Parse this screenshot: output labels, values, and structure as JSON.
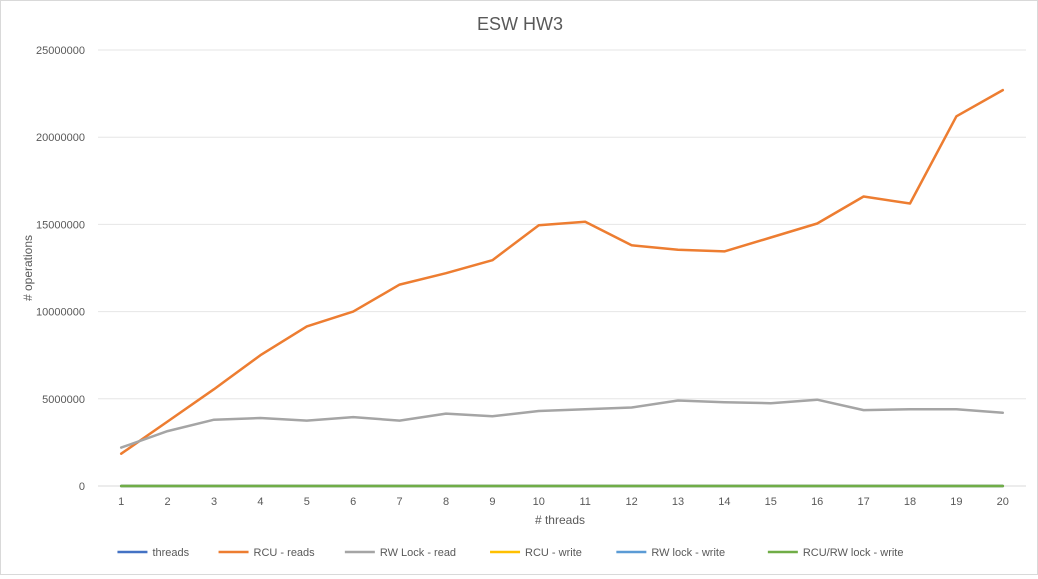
{
  "chart_data": {
    "type": "line",
    "title": "ESW HW3",
    "xlabel": "# threads",
    "ylabel": "# operations",
    "categories": [
      "1",
      "2",
      "3",
      "4",
      "5",
      "6",
      "7",
      "8",
      "9",
      "10",
      "11",
      "12",
      "13",
      "14",
      "15",
      "16",
      "17",
      "18",
      "19",
      "20"
    ],
    "ylim": [
      0,
      25000000
    ],
    "yticks": [
      "0",
      "5000000",
      "10000000",
      "15000000",
      "20000000",
      "25000000"
    ],
    "grid": true,
    "legend_position": "bottom",
    "series": [
      {
        "name": "threads",
        "color": "#4472c4",
        "values": [
          1,
          2,
          3,
          4,
          5,
          6,
          7,
          8,
          9,
          10,
          11,
          12,
          13,
          14,
          15,
          16,
          17,
          18,
          19,
          20
        ]
      },
      {
        "name": "RCU - reads",
        "color": "#ed7d31",
        "values": [
          1850000,
          3700000,
          5550000,
          7500000,
          9150000,
          10000000,
          11550000,
          12200000,
          12950000,
          14950000,
          15150000,
          13800000,
          13550000,
          13450000,
          14250000,
          15050000,
          16600000,
          16200000,
          21200000,
          22700000
        ]
      },
      {
        "name": "RW Lock - read",
        "color": "#a5a5a5",
        "values": [
          2200000,
          3150000,
          3800000,
          3900000,
          3750000,
          3950000,
          3750000,
          4150000,
          4000000,
          4300000,
          4400000,
          4500000,
          4900000,
          4800000,
          4750000,
          4950000,
          4350000,
          4400000,
          4400000,
          4200000
        ]
      },
      {
        "name": "RCU - write",
        "color": "#ffc000",
        "values": [
          20,
          40,
          60,
          80,
          100,
          120,
          140,
          160,
          180,
          200,
          220,
          240,
          260,
          280,
          300,
          320,
          340,
          360,
          380,
          400
        ]
      },
      {
        "name": "RW lock - write",
        "color": "#5b9bd5",
        "values": [
          20,
          40,
          60,
          80,
          100,
          120,
          140,
          160,
          180,
          200,
          220,
          240,
          260,
          280,
          300,
          320,
          340,
          360,
          380,
          400
        ]
      },
      {
        "name": "RCU/RW lock - write",
        "color": "#70ad47",
        "values": [
          20,
          40,
          60,
          80,
          100,
          120,
          140,
          160,
          180,
          200,
          220,
          240,
          260,
          280,
          300,
          320,
          340,
          360,
          380,
          400
        ]
      }
    ]
  }
}
